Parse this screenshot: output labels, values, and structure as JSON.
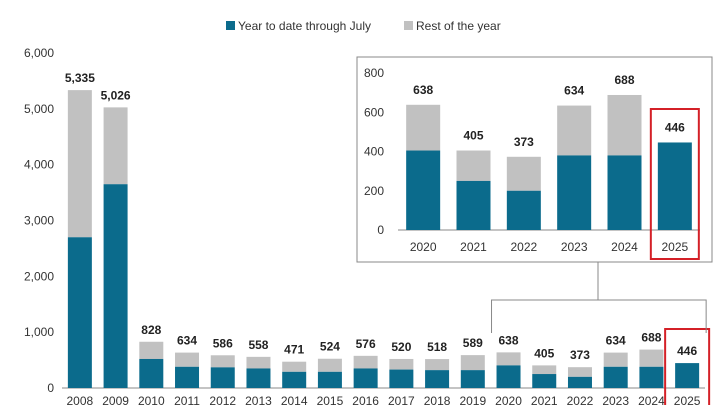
{
  "legend": {
    "ytd_label": "Year to date through July",
    "rest_label": "Rest of the year"
  },
  "colors": {
    "ytd": "#0b6b8c",
    "rest": "#c1c1c1",
    "highlight": "#d42027",
    "axis": "#888888",
    "connector": "#888888"
  },
  "chart_data": [
    {
      "type": "bar",
      "stacked": true,
      "title": "",
      "xlabel": "",
      "ylabel": "",
      "ylim": [
        0,
        6000
      ],
      "yticks": [
        "0",
        "1,000",
        "2,000",
        "3,000",
        "4,000",
        "5,000",
        "6,000"
      ],
      "categories": [
        "2008",
        "2009",
        "2010",
        "2011",
        "2012",
        "2013",
        "2014",
        "2015",
        "2016",
        "2017",
        "2018",
        "2019",
        "2020",
        "2021",
        "2022",
        "2023",
        "2024",
        "2025"
      ],
      "series": [
        {
          "name": "Year to date through July",
          "values": [
            2700,
            3650,
            520,
            380,
            370,
            350,
            290,
            290,
            350,
            330,
            320,
            320,
            405,
            250,
            200,
            380,
            380,
            446
          ]
        },
        {
          "name": "Rest of the year",
          "values": [
            2635,
            1376,
            308,
            254,
            216,
            208,
            181,
            234,
            226,
            190,
            198,
            269,
            233,
            155,
            173,
            254,
            308,
            0
          ]
        }
      ],
      "totals": [
        "5,335",
        "5,026",
        "828",
        "634",
        "586",
        "558",
        "471",
        "524",
        "576",
        "520",
        "518",
        "589",
        "638",
        "405",
        "373",
        "634",
        "688",
        "446"
      ],
      "highlight_category": "2025",
      "legend_position": "top",
      "grid": false
    },
    {
      "type": "bar",
      "stacked": true,
      "title": "",
      "ylim": [
        0,
        800
      ],
      "yticks": [
        "0",
        "200",
        "400",
        "600",
        "800"
      ],
      "categories": [
        "2020",
        "2021",
        "2022",
        "2023",
        "2024",
        "2025"
      ],
      "series": [
        {
          "name": "Year to date through July",
          "values": [
            405,
            250,
            200,
            380,
            380,
            446
          ]
        },
        {
          "name": "Rest of the year",
          "values": [
            233,
            155,
            173,
            254,
            308,
            0
          ]
        }
      ],
      "totals": [
        "638",
        "405",
        "373",
        "634",
        "688",
        "446"
      ],
      "highlight_category": "2025",
      "grid": false
    }
  ]
}
